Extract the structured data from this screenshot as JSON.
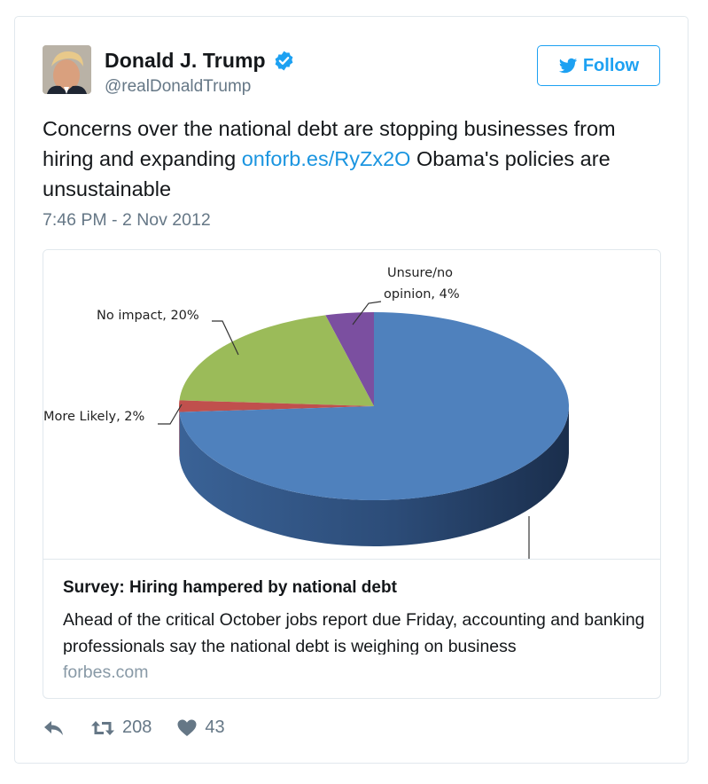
{
  "user": {
    "name": "Donald J. Trump",
    "handle": "@realDonaldTrump"
  },
  "follow_label": "Follow",
  "tweet": {
    "text_before": "Concerns over the national debt are stopping businesses from hiring and expanding ",
    "link_text": "onforb.es/RyZx2O",
    "text_after": " Obama's policies are unsustainable",
    "timestamp": "7:46 PM - 2 Nov 2012"
  },
  "card": {
    "title": "Survey: Hiring hampered by national debt",
    "description": "Ahead of the critical October jobs report due Friday, accounting and banking professionals say the national debt is weighing on business",
    "domain": "forbes.com"
  },
  "chart_data": {
    "type": "pie",
    "slices": [
      {
        "label": "Unsure/no opinion, 4%",
        "value": 4,
        "color": "#7b4fa0"
      },
      {
        "label": "No impact, 20%",
        "value": 20,
        "color": "#9bbb59"
      },
      {
        "label": "More Likely, 2%",
        "value": 2,
        "color": "#c0504d"
      },
      {
        "label": "",
        "value": 74,
        "color": "#4f81bd"
      }
    ]
  },
  "stats": {
    "retweets": "208",
    "likes": "43"
  },
  "colors": {
    "accent": "#1da1f2",
    "link": "#1b95e0",
    "muted": "#657786"
  },
  "icons": [
    "verified-icon",
    "twitter-bird-icon",
    "reply-icon",
    "retweet-icon",
    "heart-icon"
  ]
}
